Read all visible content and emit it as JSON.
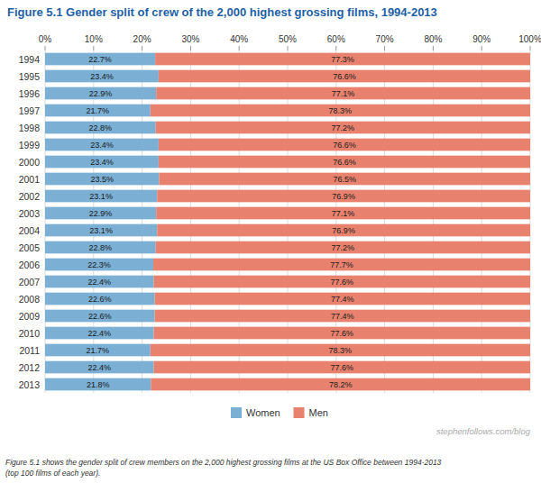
{
  "chart_data": {
    "type": "bar",
    "orientation": "horizontal",
    "stacked": true,
    "data_labels": true,
    "grid": true,
    "legend": "bottom",
    "title": "Figure 5.1 Gender split of crew of the 2,000 highest grossing films, 1994-2013",
    "annotations": [
      "stephenfollows.com/blog",
      "Figure 5.1 shows the gender split of crew members on the 2,000 highest grossing films at the US Box Office between 1994-2013\n(top 100 films of each year)."
    ],
    "categories": [
      "1994",
      "1995",
      "1996",
      "1997",
      "1998",
      "1999",
      "2000",
      "2001",
      "2002",
      "2003",
      "2004",
      "2005",
      "2006",
      "2007",
      "2008",
      "2009",
      "2010",
      "2011",
      "2012",
      "2013"
    ],
    "series": [
      {
        "name": "Women",
        "color": "#7bafd4",
        "values": [
          22.7,
          23.4,
          22.9,
          21.7,
          22.8,
          23.4,
          23.4,
          23.5,
          23.1,
          22.9,
          23.1,
          22.8,
          22.3,
          22.4,
          22.6,
          22.6,
          22.4,
          21.7,
          22.4,
          21.8
        ],
        "value_labels": [
          "22.7%",
          "23.4%",
          "22.9%",
          "21.7%",
          "22.8%",
          "23.4%",
          "23.4%",
          "23.5%",
          "23.1%",
          "22.9%",
          "23.1%",
          "22.8%",
          "22.3%",
          "22.4%",
          "22.6%",
          "22.6%",
          "22.4%",
          "21.7%",
          "22.4%",
          "21.8%"
        ]
      },
      {
        "name": "Men",
        "color": "#e8826e",
        "values": [
          77.3,
          76.6,
          77.1,
          78.3,
          77.2,
          76.6,
          76.6,
          76.5,
          76.9,
          77.1,
          76.9,
          77.2,
          77.7,
          77.6,
          77.4,
          77.4,
          77.6,
          78.3,
          77.6,
          78.2
        ],
        "value_labels": [
          "77.3%",
          "76.6%",
          "77.1%",
          "78.3%",
          "77.2%",
          "76.6%",
          "76.6%",
          "76.5%",
          "76.9%",
          "77.1%",
          "76.9%",
          "77.2%",
          "77.7%",
          "77.6%",
          "77.4%",
          "77.4%",
          "77.6%",
          "78.3%",
          "77.6%",
          "78.2%"
        ]
      }
    ],
    "xlim": [
      0,
      100
    ],
    "xticks": [
      {
        "value": 0,
        "label": "0%"
      },
      {
        "value": 10,
        "label": "10%"
      },
      {
        "value": 20,
        "label": "20%"
      },
      {
        "value": 30,
        "label": "30%"
      },
      {
        "value": 40,
        "label": "40%"
      },
      {
        "value": 50,
        "label": "50%"
      },
      {
        "value": 60,
        "label": "60%"
      },
      {
        "value": 70,
        "label": "70%"
      },
      {
        "value": 80,
        "label": "80%"
      },
      {
        "value": 90,
        "label": "90%"
      },
      {
        "value": 100,
        "label": "100%"
      }
    ]
  }
}
